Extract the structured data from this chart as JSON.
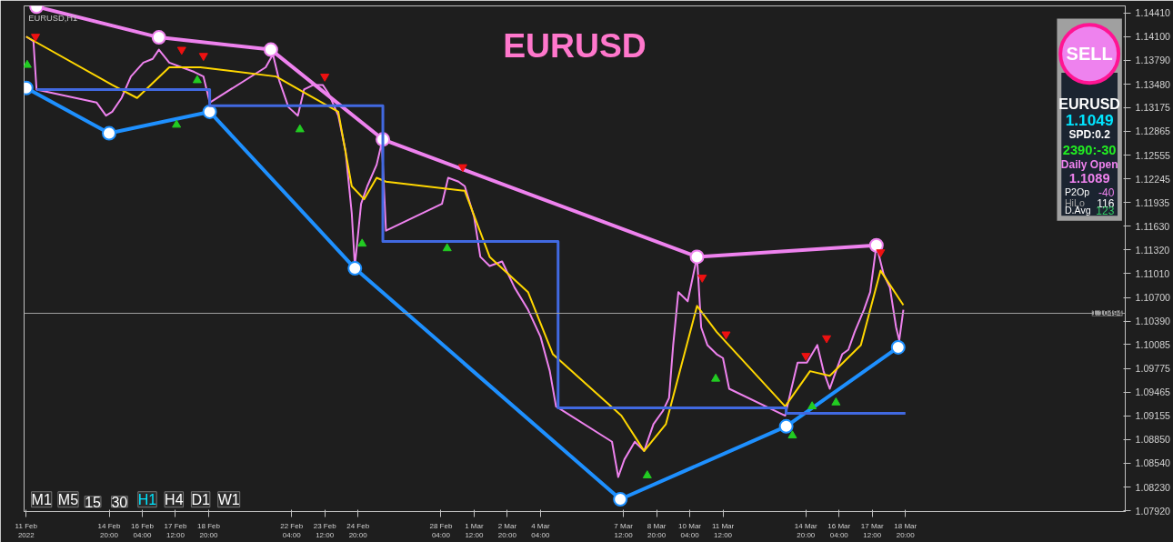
{
  "chart_data": {
    "type": "line",
    "title": "EURUSD",
    "subtitle": "EURUSD,H1",
    "xlim": [
      "2022-02-11T10:00",
      "2022-03-27T16:00"
    ],
    "ylim": [
      1.0791,
      1.145
    ],
    "xticks": [
      {
        "value": "2022-02-11T12:00",
        "label": "11 Feb 2022"
      },
      {
        "value": "2022-02-14T20:00",
        "label": "14 Feb 20:00"
      },
      {
        "value": "2022-02-16T04:00",
        "label": "16 Feb 04:00"
      },
      {
        "value": "2022-02-17T12:00",
        "label": "17 Feb 12:00"
      },
      {
        "value": "2022-02-18T20:00",
        "label": "18 Feb 20:00"
      },
      {
        "value": "2022-02-22T04:00",
        "label": "22 Feb 04:00"
      },
      {
        "value": "2022-02-23T12:00",
        "label": "23 Feb 12:00"
      },
      {
        "value": "2022-02-24T20:00",
        "label": "24 Feb 20:00"
      },
      {
        "value": "2022-02-28T04:00",
        "label": "28 Feb 04:00"
      },
      {
        "value": "2022-03-01T12:00",
        "label": "1 Mar 12:00"
      },
      {
        "value": "2022-03-02T20:00",
        "label": "2 Mar 20:00"
      },
      {
        "value": "2022-03-04T04:00",
        "label": "4 Mar 04:00"
      },
      {
        "value": "2022-03-07T12:00",
        "label": "7 Mar 12:00"
      },
      {
        "value": "2022-03-08T20:00",
        "label": "8 Mar 20:00"
      },
      {
        "value": "2022-03-10T04:00",
        "label": "10 Mar 04:00"
      },
      {
        "value": "2022-03-11T12:00",
        "label": "11 Mar 12:00"
      },
      {
        "value": "2022-03-14T20:00",
        "label": "14 Mar 20:00"
      },
      {
        "value": "2022-03-16T04:00",
        "label": "16 Mar 04:00"
      },
      {
        "value": "2022-03-17T12:00",
        "label": "17 Mar 12:00"
      },
      {
        "value": "2022-03-18T20:00",
        "label": "18 Mar 20:00"
      }
    ],
    "yticks": [
      {
        "value": 1.1441,
        "label": "1.14410"
      },
      {
        "value": 1.141,
        "label": "1.14100"
      },
      {
        "value": 1.1379,
        "label": "1.13790"
      },
      {
        "value": 1.1348,
        "label": "1.13480"
      },
      {
        "value": 1.13175,
        "label": "1.13175"
      },
      {
        "value": 1.12865,
        "label": "1.12865"
      },
      {
        "value": 1.12555,
        "label": "1.12555"
      },
      {
        "value": 1.12245,
        "label": "1.12245"
      },
      {
        "value": 1.11935,
        "label": "1.11935"
      },
      {
        "value": 1.1163,
        "label": "1.11630"
      },
      {
        "value": 1.1132,
        "label": "1.11320"
      },
      {
        "value": 1.1101,
        "label": "1.11010"
      },
      {
        "value": 1.107,
        "label": "1.10700"
      },
      {
        "value": 1.1039,
        "label": "1.10390"
      },
      {
        "value": 1.10085,
        "label": "1.10085"
      },
      {
        "value": 1.09775,
        "label": "1.09775"
      },
      {
        "value": 1.09465,
        "label": "1.09465"
      },
      {
        "value": 1.09155,
        "label": "1.09155"
      },
      {
        "value": 1.0885,
        "label": "1.08850"
      },
      {
        "value": 1.0854,
        "label": "1.08540"
      },
      {
        "value": 1.0823,
        "label": "1.08230"
      },
      {
        "value": 1.0792,
        "label": "1.07920"
      }
    ],
    "grid": false,
    "series": [
      {
        "color": "#ee82ee",
        "marker": "none",
        "x": [
          "2022-02-11T12:00",
          "2022-02-11T19:00",
          "2022-02-11T22:00",
          "2022-02-14T08:00",
          "2022-02-14T17:00",
          "2022-02-14T23:00",
          "2022-02-15T08:00",
          "2022-02-15T17:00",
          "2022-02-16T05:00",
          "2022-02-16T14:00",
          "2022-02-16T20:00",
          "2022-02-17T06:00",
          "2022-02-17T18:00",
          "2022-02-18T06:00",
          "2022-02-18T15:00",
          "2022-02-18T21:00",
          "2022-02-21T03:00",
          "2022-02-21T10:00",
          "2022-02-21T16:00",
          "2022-02-22T01:00",
          "2022-02-22T10:00",
          "2022-02-22T16:00",
          "2022-02-23T01:00",
          "2022-02-23T10:00",
          "2022-02-23T16:00",
          "2022-02-24T01:00",
          "2022-02-24T08:00",
          "2022-02-24T14:00",
          "2022-02-24T17:00",
          "2022-02-24T23:00",
          "2022-02-25T05:00",
          "2022-02-25T14:00",
          "2022-02-25T19:00",
          "2022-02-25T23:00",
          "2022-02-28T05:00",
          "2022-02-28T11:00",
          "2022-02-28T21:00",
          "2022-03-01T03:00",
          "2022-03-01T12:00",
          "2022-03-01T18:00",
          "2022-03-02T03:00",
          "2022-03-02T15:00",
          "2022-03-03T03:00",
          "2022-03-03T16:00",
          "2022-03-04T04:00",
          "2022-03-04T13:00",
          "2022-03-04T19:00",
          "2022-03-07T01:00",
          "2022-03-07T07:00",
          "2022-03-07T13:00",
          "2022-03-07T23:00",
          "2022-03-08T08:00",
          "2022-03-08T17:00",
          "2022-03-09T02:00",
          "2022-03-09T08:00",
          "2022-03-09T12:00",
          "2022-03-09T17:00",
          "2022-03-10T02:00",
          "2022-03-10T11:00",
          "2022-03-10T15:00",
          "2022-03-10T21:00",
          "2022-03-11T06:00",
          "2022-03-11T12:00",
          "2022-03-11T18:00",
          "2022-03-14T00:00",
          "2022-03-14T06:00",
          "2022-03-14T12:00",
          "2022-03-14T21:00",
          "2022-03-15T07:00",
          "2022-03-15T13:00",
          "2022-03-15T19:00",
          "2022-03-16T01:00",
          "2022-03-16T07:00",
          "2022-03-16T13:00",
          "2022-03-16T19:00",
          "2022-03-17T04:00",
          "2022-03-17T10:00",
          "2022-03-17T16:00",
          "2022-03-17T23:00",
          "2022-03-18T05:00",
          "2022-03-18T11:00",
          "2022-03-18T14:00",
          "2022-03-18T18:00"
        ],
        "values": [
          1.141,
          1.1404,
          1.1341,
          1.1324,
          1.1307,
          1.1312,
          1.133,
          1.1358,
          1.1376,
          1.1381,
          1.1393,
          1.1376,
          1.137,
          1.1364,
          1.1358,
          1.1324,
          1.137,
          1.1387,
          1.1353,
          1.1318,
          1.1307,
          1.1341,
          1.1347,
          1.1347,
          1.1335,
          1.1307,
          1.1261,
          1.118,
          1.1111,
          1.1192,
          1.1215,
          1.1243,
          1.1272,
          1.1157,
          1.1192,
          1.1226,
          1.1221,
          1.1215,
          1.1175,
          1.1123,
          1.1111,
          1.1117,
          1.1083,
          1.1054,
          1.1019,
          1.0974,
          1.0928,
          1.0882,
          1.0836,
          1.0859,
          1.0882,
          1.087,
          1.0905,
          1.0922,
          1.0939,
          1.1008,
          1.1077,
          1.1065,
          1.1123,
          1.1031,
          1.1008,
          1.0996,
          1.0991,
          1.0951,
          1.0916,
          1.0951,
          1.0985,
          1.0985,
          1.1008,
          1.0974,
          1.0951,
          1.0974,
          1.0996,
          1.1002,
          1.1025,
          1.1054,
          1.1077,
          1.1138,
          1.11,
          1.1083,
          1.1031,
          1.1014,
          1.1054
        ]
      },
      {
        "color": "#ffd700",
        "marker": "none",
        "x": [
          "2022-02-11T12:00",
          "2022-02-14T23:00",
          "2022-02-15T23:00",
          "2022-02-17T06:00",
          "2022-02-18T12:00",
          "2022-02-21T13:00",
          "2022-02-22T19:00",
          "2022-02-24T01:00",
          "2022-02-24T14:00",
          "2022-02-25T02:00",
          "2022-02-25T14:00",
          "2022-02-25T23:00",
          "2022-03-01T03:00",
          "2022-03-02T03:00",
          "2022-03-03T16:00",
          "2022-03-04T16:00",
          "2022-03-07T10:00",
          "2022-03-08T08:00",
          "2022-03-09T05:00",
          "2022-03-10T11:00",
          "2022-03-11T06:00",
          "2022-03-14T00:00",
          "2022-03-15T00:00",
          "2022-03-15T19:00",
          "2022-03-17T01:00",
          "2022-03-17T20:00",
          "2022-03-18T18:00"
        ],
        "values": [
          1.141,
          1.1347,
          1.133,
          1.137,
          1.137,
          1.1358,
          1.1335,
          1.1312,
          1.1215,
          1.1198,
          1.1226,
          1.1221,
          1.1209,
          1.1123,
          1.1077,
          1.0996,
          1.0916,
          1.087,
          1.0905,
          1.1059,
          1.1025,
          1.0928,
          1.0974,
          1.0968,
          1.1008,
          1.1105,
          1.106
        ]
      },
      {
        "color": "#ee82ee",
        "marker": "circle",
        "x": [
          "2022-02-11T22:00",
          "2022-02-16T20:00",
          "2022-02-21T08:00",
          "2022-02-25T20:00",
          "2022-03-10T11:00",
          "2022-03-17T16:00"
        ],
        "values": [
          1.1449,
          1.1409,
          1.1393,
          1.1276,
          1.1123,
          1.1138
        ]
      },
      {
        "color": "#1e90ff",
        "marker": "circle",
        "x": [
          "2022-02-11T12:00",
          "2022-02-14T20:00",
          "2022-02-18T21:00",
          "2022-02-24T17:00",
          "2022-03-07T09:00",
          "2022-03-14T01:00",
          "2022-03-18T13:00"
        ],
        "values": [
          1.1343,
          1.1284,
          1.1312,
          1.1108,
          1.0807,
          1.0902,
          1.1005
        ]
      },
      {
        "color": "#4169e1",
        "marker": "none",
        "x": [
          "2022-02-11T22:00",
          "2022-02-18T21:00",
          "2022-02-18T21:00",
          "2022-02-25T20:00",
          "2022-02-25T20:00",
          "2022-03-04T21:00",
          "2022-03-04T21:00",
          "2022-03-14T01:00",
          "2022-03-14T01:00",
          "2022-03-18T20:00"
        ],
        "values": [
          1.1341,
          1.1341,
          1.132,
          1.132,
          1.1143,
          1.1143,
          1.0926,
          1.0926,
          1.0919,
          1.0919
        ]
      },
      {
        "type": "scatter",
        "color": "#22cc22",
        "marker": "triangle",
        "x": [
          "2022-02-11T13:00",
          "2022-02-17T13:00",
          "2022-02-18T09:00",
          "2022-02-22T12:00",
          "2022-02-25T00:00",
          "2022-02-28T10:00",
          "2022-03-08T11:00",
          "2022-03-11T05:00",
          "2022-03-14T07:00",
          "2022-03-15T02:00",
          "2022-03-16T01:00"
        ],
        "values": [
          1.1373,
          1.1295,
          1.1353,
          1.1289,
          1.114,
          1.1134,
          1.0838,
          1.0964,
          1.089,
          1.0928,
          1.0933
        ]
      },
      {
        "type": "scatter",
        "color": "#ee1111",
        "marker": "triangle",
        "x": [
          "2022-02-11T21:00",
          "2022-02-17T18:00",
          "2022-02-18T15:00",
          "2022-02-23T12:00",
          "2022-03-01T01:00",
          "2022-03-10T16:00",
          "2022-03-11T15:00",
          "2022-03-14T20:00",
          "2022-03-15T16:00",
          "2022-03-17T20:00"
        ],
        "values": [
          1.141,
          1.1393,
          1.1385,
          1.1358,
          1.124,
          1.1096,
          1.1022,
          1.0994,
          1.1017,
          1.1129
        ]
      }
    ],
    "ref_lines": [
      {
        "axis": "y",
        "value": 1.10494,
        "label": "1.10494",
        "color": "#a0a0a0"
      }
    ],
    "annotations": [
      "SELL",
      "EURUSD",
      "1.1049",
      "SPD:0.2",
      "2390:-30",
      "Daily Open",
      "1.1089",
      "P2Op",
      "-40",
      "HiLo",
      "116",
      "D.Avg",
      "123",
      "M1",
      "M5",
      "15",
      "30",
      "H1",
      "H4",
      "D1",
      "W1"
    ]
  }
}
